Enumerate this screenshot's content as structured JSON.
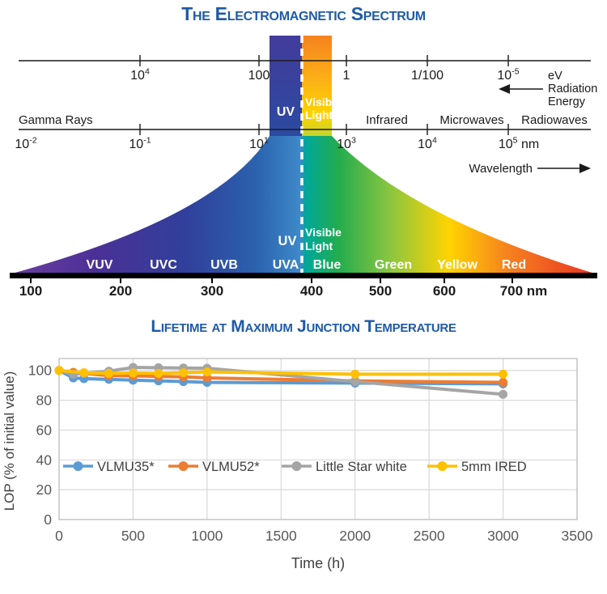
{
  "colors": {
    "title_blue": "#1E5AA8",
    "diagram_text": "#1a1a1a",
    "chart_tick_text": "#595959",
    "chart_label_text": "#404040"
  },
  "spectrum": {
    "title": "The Electromagnetic Spectrum",
    "energy_axis_ticks": [
      "10⁴",
      "100",
      "1",
      "1/100",
      "10⁻⁵"
    ],
    "energy_axis_unit_lines": [
      "eV",
      "Radiation",
      "Energy"
    ],
    "gamma_label": "Gamma Rays",
    "band_labels": [
      "Infrared",
      "Microwaves",
      "Radiowaves"
    ],
    "uv_label": "UV",
    "visible_light_lines": [
      "Visible",
      "Light"
    ],
    "wavelength_axis_ticks": [
      "10⁻²",
      "10⁻¹",
      "10¹",
      "10³",
      "10⁴",
      "10⁵ nm"
    ],
    "wavelength_label": "Wavelength",
    "uv_band_labels": [
      "VUV",
      "UVC",
      "UVB",
      "UVA"
    ],
    "visible_band_labels": [
      "Blue",
      "Green",
      "Yellow",
      "Red"
    ],
    "nm_scale_ticks": [
      "100",
      "200",
      "300",
      "400",
      "500",
      "600",
      "700 nm"
    ],
    "colors": {
      "purple": "#6B3FA0",
      "deep_violet": "#4B3096",
      "indigo": "#30409B",
      "blue": "#2B62AE",
      "light_blue": "#3E8AC9",
      "teal": "#00A79B",
      "green": "#23AC4D",
      "yellow_green": "#8CC63F",
      "yellow": "#FFD400",
      "orange": "#F5821F",
      "red": "#E93323"
    }
  },
  "chart_data": {
    "type": "line",
    "title": "Lifetime at Maximum Junction Temperature",
    "xlabel": "Time (h)",
    "ylabel": "LOP (% of initial value)",
    "x": [
      0,
      96,
      168,
      336,
      500,
      672,
      840,
      1000,
      2000,
      3000
    ],
    "series": [
      {
        "name": "VLMU35*",
        "color": "#5B9BD5",
        "values": [
          100,
          95,
          94.5,
          94,
          93.5,
          93,
          92.5,
          92,
          91.5,
          91
        ]
      },
      {
        "name": "VLMU52*",
        "color": "#ED7D31",
        "values": [
          100,
          98.7,
          98,
          96.5,
          96.3,
          96,
          95.7,
          95,
          93,
          92
        ]
      },
      {
        "name": "Little Star white",
        "color": "#A5A5A5",
        "values": [
          100,
          97.5,
          98,
          99.5,
          102,
          101.8,
          101.6,
          101.5,
          92.5,
          84
        ]
      },
      {
        "name": "5mm IRED",
        "color": "#FFC000",
        "values": [
          100,
          null,
          98.5,
          98,
          98.3,
          98,
          98.5,
          99,
          97.5,
          97.5
        ]
      }
    ],
    "x_ticks": [
      0,
      500,
      1000,
      1500,
      2000,
      2500,
      3000,
      3500
    ],
    "y_ticks": [
      0,
      20,
      40,
      60,
      80,
      100
    ],
    "xlim": [
      0,
      3500
    ],
    "ylim": [
      0,
      108
    ],
    "grid": true,
    "legend_position": "inside-bottom"
  }
}
